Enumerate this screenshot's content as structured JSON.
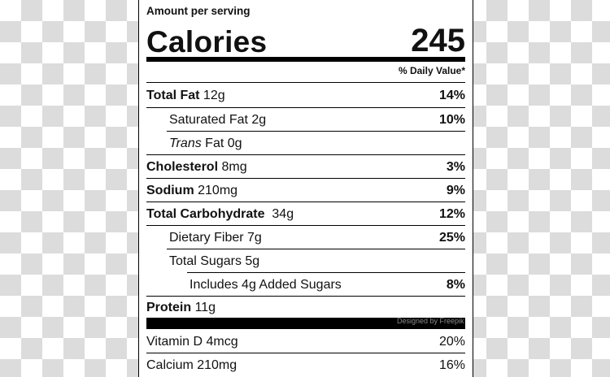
{
  "label": {
    "amount_per_serving": "Amount per serving",
    "calories_label": "Calories",
    "calories_value": "245",
    "daily_value_header": "% Daily Value*",
    "rows": [
      {
        "bold": "Total Fat",
        "rest": " 12g",
        "dv": "14%"
      },
      {
        "bold": "",
        "rest": "Saturated Fat 2g",
        "dv": "10%"
      },
      {
        "italic": "Trans",
        "rest": " Fat 0g",
        "dv": ""
      },
      {
        "bold": "Cholesterol",
        "rest": " 8mg",
        "dv": "3%"
      },
      {
        "bold": "Sodium",
        "rest": " 210mg",
        "dv": "9%"
      },
      {
        "bold": "Total Carbohydrate",
        "rest": "  34g",
        "dv": "12%"
      },
      {
        "bold": "",
        "rest": "Dietary Fiber 7g",
        "dv": "25%"
      },
      {
        "bold": "",
        "rest": "Total Sugars 5g",
        "dv": ""
      },
      {
        "bold": "",
        "rest": "Includes 4g Added Sugars",
        "dv": "8%"
      },
      {
        "bold": "Protein",
        "rest": " 11g",
        "dv": ""
      },
      {
        "bold": "",
        "rest": "Vitamin D 4mcg",
        "dv": "20%"
      },
      {
        "bold": "",
        "rest": "Calcium 210mg",
        "dv": "16%"
      }
    ]
  },
  "watermark": "Designed by Freepik",
  "colors": {
    "background_check": "#dcdcdc",
    "panel": "#ffffff",
    "ink": "#000000"
  }
}
